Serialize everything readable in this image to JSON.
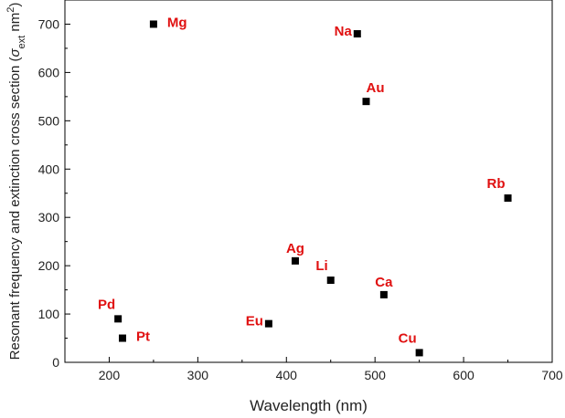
{
  "chart_data": {
    "type": "scatter",
    "title": "",
    "xlabel": "Wavelength (nm)",
    "ylabel": {
      "main": "Resonant frequency and extinction cross section (",
      "sigma": "σ",
      "sub": "ext",
      "unit": " nm",
      "sup": "2",
      "close": ")"
    },
    "xlim": [
      150,
      700
    ],
    "ylim": [
      0,
      750
    ],
    "xticks": [
      200,
      300,
      400,
      500,
      600,
      700
    ],
    "yticks": [
      0,
      100,
      200,
      300,
      400,
      500,
      600,
      700
    ],
    "grid": false,
    "legend": "none",
    "marker_color": "#000000",
    "label_color": "#e01010",
    "points": [
      {
        "label": "Mg",
        "x": 250,
        "y": 700,
        "label_side": "right"
      },
      {
        "label": "Na",
        "x": 480,
        "y": 680,
        "label_side": "left"
      },
      {
        "label": "Au",
        "x": 490,
        "y": 540,
        "label_side": "above-right"
      },
      {
        "label": "Rb",
        "x": 650,
        "y": 340,
        "label_side": "above-left"
      },
      {
        "label": "Ag",
        "x": 410,
        "y": 210,
        "label_side": "above"
      },
      {
        "label": "Li",
        "x": 450,
        "y": 170,
        "label_side": "above-left"
      },
      {
        "label": "Ca",
        "x": 510,
        "y": 140,
        "label_side": "above"
      },
      {
        "label": "Pd",
        "x": 210,
        "y": 90,
        "label_side": "above-left"
      },
      {
        "label": "Eu",
        "x": 380,
        "y": 80,
        "label_side": "left"
      },
      {
        "label": "Pt",
        "x": 215,
        "y": 50,
        "label_side": "right"
      },
      {
        "label": "Cu",
        "x": 550,
        "y": 20,
        "label_side": "above-left"
      }
    ]
  }
}
